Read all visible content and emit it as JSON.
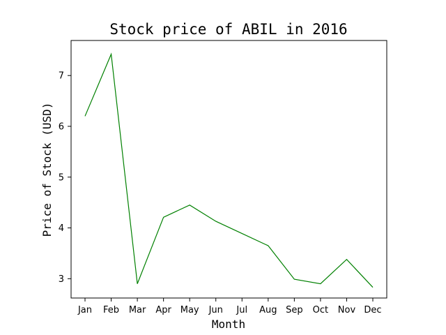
{
  "chart_data": {
    "type": "line",
    "title": "Stock price of ABIL in 2016",
    "xlabel": "Month",
    "ylabel": "Price of Stock (USD)",
    "categories": [
      "Jan",
      "Feb",
      "Mar",
      "Apr",
      "May",
      "Jun",
      "Jul",
      "Aug",
      "Sep",
      "Oct",
      "Nov",
      "Dec"
    ],
    "series": [
      {
        "values": [
          6.2,
          7.42,
          2.9,
          4.21,
          4.45,
          4.13,
          3.89,
          3.65,
          2.99,
          2.9,
          3.38,
          2.83
        ],
        "color": "#008000"
      }
    ],
    "yticks": [
      3,
      4,
      5,
      6,
      7
    ],
    "ylim": [
      2.62,
      7.69
    ],
    "grid": false,
    "legend": "none"
  }
}
